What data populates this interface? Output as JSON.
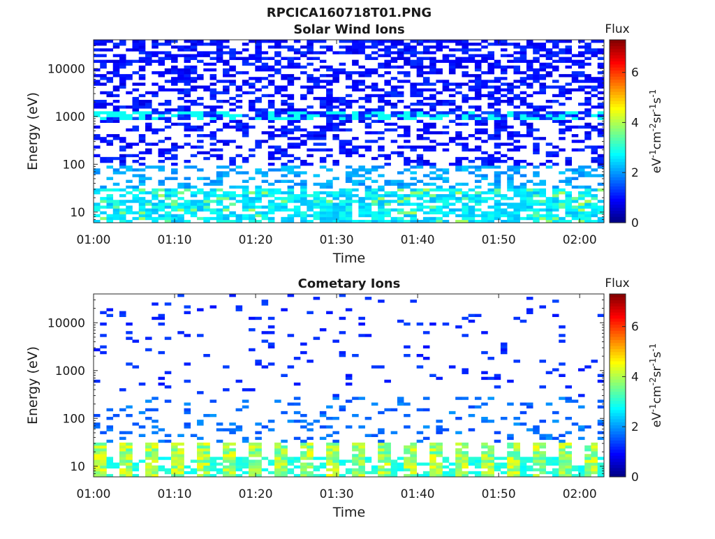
{
  "figure": {
    "title": "RPCICA160718T01.PNG"
  },
  "chart_data": [
    {
      "type": "heatmap",
      "title": "Solar Wind Ions",
      "xlabel": "Time",
      "ylabel": "Energy (eV)",
      "x_ticks": [
        "01:00",
        "01:10",
        "01:20",
        "01:30",
        "01:40",
        "01:50",
        "02:00"
      ],
      "x_range": [
        "01:00",
        "02:03"
      ],
      "y_scale": "log",
      "y_ticks": [
        "10",
        "100",
        "1000",
        "10000"
      ],
      "y_range": [
        6,
        40000
      ],
      "colorbar": {
        "label_top": "Flux",
        "unit_label": "eV-1cm-2sr-1s-1",
        "ticks": [
          "0",
          "2",
          "4",
          "6"
        ],
        "range": [
          0,
          7.3
        ],
        "colormap": [
          "#00008f",
          "#0000ff",
          "#0080ff",
          "#00ffff",
          "#80ff80",
          "#ffff00",
          "#ff8000",
          "#ff0000",
          "#800000"
        ]
      },
      "grid": false,
      "description_of_values": {
        "high_energy_band_eV": [
          100,
          40000
        ],
        "high_energy_typical_flux": 1.0,
        "band_1000eV_flux": 2.8,
        "low_energy_band_eV": [
          6,
          30
        ],
        "low_energy_typical_flux": 2.6,
        "low_energy_peak_flux": 3.6
      }
    },
    {
      "type": "heatmap",
      "title": "Cometary Ions",
      "xlabel": "Time",
      "ylabel": "Energy (eV)",
      "x_ticks": [
        "01:00",
        "01:10",
        "01:20",
        "01:30",
        "01:40",
        "01:50",
        "02:00"
      ],
      "x_range": [
        "01:00",
        "02:03"
      ],
      "y_scale": "log",
      "y_ticks": [
        "10",
        "100",
        "1000",
        "10000"
      ],
      "y_range": [
        6,
        40000
      ],
      "colorbar": {
        "label_top": "Flux",
        "unit_label": "eV-1cm-2sr-1s-1",
        "ticks": [
          "0",
          "2",
          "4",
          "6"
        ],
        "range": [
          0,
          7.3
        ],
        "colormap": [
          "#00008f",
          "#0000ff",
          "#0080ff",
          "#00ffff",
          "#80ff80",
          "#ffff00",
          "#ff8000",
          "#ff0000",
          "#800000"
        ]
      },
      "grid": false,
      "description_of_values": {
        "sparse_band_eV": [
          60,
          40000
        ],
        "sparse_typical_flux": 1.2,
        "low_energy_band_eV": [
          6,
          30
        ],
        "low_energy_typical_flux": 3.2,
        "low_energy_peak_flux": 4.6,
        "pulse_period_minutes": 3.2
      }
    }
  ]
}
